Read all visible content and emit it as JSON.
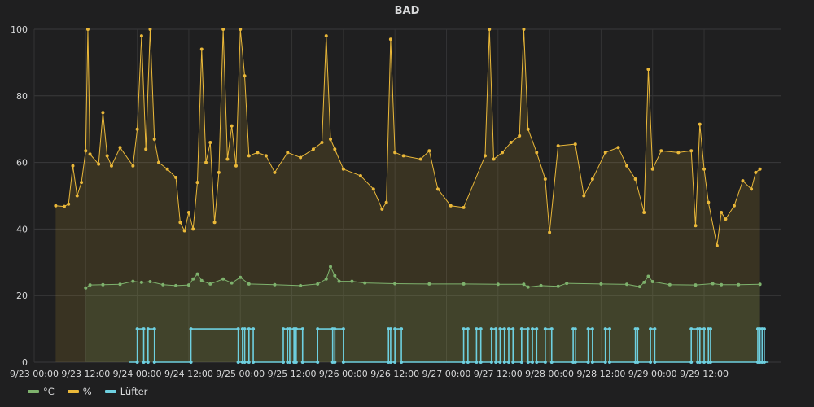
{
  "chart_data": {
    "type": "line",
    "title": "BAD",
    "xlabel": "",
    "ylabel": "",
    "ylim": [
      0,
      100
    ],
    "y_ticks": [
      0,
      20,
      40,
      60,
      80,
      100
    ],
    "xlim": [
      "2017-09-23T00:00",
      "2017-09-30T06:00"
    ],
    "x_ticks": [
      "9/23 00:00",
      "9/23 12:00",
      "9/24 00:00",
      "9/24 12:00",
      "9/25 00:00",
      "9/25 12:00",
      "9/26 00:00",
      "9/26 12:00",
      "9/27 00:00",
      "9/27 12:00",
      "9/28 00:00",
      "9/28 12:00",
      "9/29 00:00",
      "9/29 12:00"
    ],
    "grid": true,
    "legend": "bottom-left",
    "series": [
      {
        "name": "°C",
        "color": "#7eb26d",
        "fill": true,
        "points": [
          [
            "9/23 12:00",
            22.3
          ],
          [
            "9/23 13:00",
            23.2
          ],
          [
            "9/23 16:00",
            23.3
          ],
          [
            "9/23 20:00",
            23.4
          ],
          [
            "9/23 23:00",
            24.3
          ],
          [
            "9/24 01:00",
            24.0
          ],
          [
            "9/24 03:00",
            24.2
          ],
          [
            "9/24 06:00",
            23.3
          ],
          [
            "9/24 09:00",
            23.0
          ],
          [
            "9/24 12:00",
            23.2
          ],
          [
            "9/24 13:00",
            25.0
          ],
          [
            "9/24 14:00",
            26.5
          ],
          [
            "9/24 15:00",
            24.5
          ],
          [
            "9/24 17:00",
            23.5
          ],
          [
            "9/24 20:00",
            25.0
          ],
          [
            "9/24 22:00",
            23.8
          ],
          [
            "9/25 00:00",
            25.5
          ],
          [
            "9/25 02:00",
            23.5
          ],
          [
            "9/25 08:00",
            23.3
          ],
          [
            "9/25 14:00",
            23.0
          ],
          [
            "9/25 18:00",
            23.5
          ],
          [
            "9/25 20:00",
            25.0
          ],
          [
            "9/25 21:00",
            28.7
          ],
          [
            "9/25 22:00",
            26.0
          ],
          [
            "9/25 23:00",
            24.3
          ],
          [
            "9/26 02:00",
            24.3
          ],
          [
            "9/26 05:00",
            23.8
          ],
          [
            "9/26 12:00",
            23.6
          ],
          [
            "9/26 20:00",
            23.5
          ],
          [
            "9/27 04:00",
            23.5
          ],
          [
            "9/27 12:00",
            23.4
          ],
          [
            "9/27 18:00",
            23.4
          ],
          [
            "9/27 19:00",
            22.6
          ],
          [
            "9/27 22:00",
            23.0
          ],
          [
            "9/28 02:00",
            22.8
          ],
          [
            "9/28 04:00",
            23.7
          ],
          [
            "9/28 12:00",
            23.5
          ],
          [
            "9/28 18:00",
            23.4
          ],
          [
            "9/28 21:00",
            22.7
          ],
          [
            "9/28 22:00",
            24.0
          ],
          [
            "9/28 23:00",
            25.8
          ],
          [
            "9/29 00:00",
            24.2
          ],
          [
            "9/29 04:00",
            23.3
          ],
          [
            "9/29 10:00",
            23.2
          ],
          [
            "9/29 14:00",
            23.6
          ],
          [
            "9/29 16:00",
            23.3
          ],
          [
            "9/29 20:00",
            23.3
          ],
          [
            "9/30 01:00",
            23.4
          ]
        ]
      },
      {
        "name": "%",
        "color": "#eab839",
        "fill": true,
        "points": [
          [
            "9/23 05:00",
            47.0
          ],
          [
            "9/23 07:00",
            46.8
          ],
          [
            "9/23 08:00",
            47.5
          ],
          [
            "9/23 09:00",
            59.0
          ],
          [
            "9/23 10:00",
            50.0
          ],
          [
            "9/23 11:00",
            54.0
          ],
          [
            "9/23 12:00",
            63.5
          ],
          [
            "9/23 12:30",
            100
          ],
          [
            "9/23 13:00",
            62.5
          ],
          [
            "9/23 15:00",
            59.5
          ],
          [
            "9/23 16:00",
            75.0
          ],
          [
            "9/23 17:00",
            62.0
          ],
          [
            "9/23 18:00",
            59.0
          ],
          [
            "9/23 20:00",
            64.5
          ],
          [
            "9/23 23:00",
            59.0
          ],
          [
            "9/24 00:00",
            70.0
          ],
          [
            "9/24 01:00",
            98.0
          ],
          [
            "9/24 02:00",
            64.0
          ],
          [
            "9/24 03:00",
            100
          ],
          [
            "9/24 04:00",
            67.0
          ],
          [
            "9/24 05:00",
            60.0
          ],
          [
            "9/24 07:00",
            58.0
          ],
          [
            "9/24 09:00",
            55.5
          ],
          [
            "9/24 10:00",
            42.0
          ],
          [
            "9/24 11:00",
            39.5
          ],
          [
            "9/24 12:00",
            45.0
          ],
          [
            "9/24 13:00",
            40.0
          ],
          [
            "9/24 14:00",
            54.0
          ],
          [
            "9/24 15:00",
            94.0
          ],
          [
            "9/24 16:00",
            60.0
          ],
          [
            "9/24 17:00",
            66.0
          ],
          [
            "9/24 18:00",
            42.0
          ],
          [
            "9/24 19:00",
            57.0
          ],
          [
            "9/24 20:00",
            100
          ],
          [
            "9/24 21:00",
            61.0
          ],
          [
            "9/24 22:00",
            71.0
          ],
          [
            "9/24 23:00",
            59.0
          ],
          [
            "9/25 00:00",
            100
          ],
          [
            "9/25 01:00",
            86.0
          ],
          [
            "9/25 02:00",
            62.0
          ],
          [
            "9/25 04:00",
            63.0
          ],
          [
            "9/25 06:00",
            62.0
          ],
          [
            "9/25 08:00",
            57.0
          ],
          [
            "9/25 11:00",
            63.0
          ],
          [
            "9/25 14:00",
            61.5
          ],
          [
            "9/25 17:00",
            64.0
          ],
          [
            "9/25 19:00",
            66.0
          ],
          [
            "9/25 20:00",
            98.0
          ],
          [
            "9/25 21:00",
            67.0
          ],
          [
            "9/25 22:00",
            64.0
          ],
          [
            "9/26 00:00",
            58.0
          ],
          [
            "9/26 04:00",
            56.0
          ],
          [
            "9/26 07:00",
            52.0
          ],
          [
            "9/26 09:00",
            46.0
          ],
          [
            "9/26 10:00",
            48.0
          ],
          [
            "9/26 11:00",
            97.0
          ],
          [
            "9/26 12:00",
            63.0
          ],
          [
            "9/26 14:00",
            62.0
          ],
          [
            "9/26 18:00",
            61.0
          ],
          [
            "9/26 20:00",
            63.5
          ],
          [
            "9/26 22:00",
            52.0
          ],
          [
            "9/27 01:00",
            47.0
          ],
          [
            "9/27 04:00",
            46.5
          ],
          [
            "9/27 09:00",
            62.0
          ],
          [
            "9/27 10:00",
            100
          ],
          [
            "9/27 11:00",
            61.0
          ],
          [
            "9/27 13:00",
            63.0
          ],
          [
            "9/27 15:00",
            66.0
          ],
          [
            "9/27 17:00",
            68.0
          ],
          [
            "9/27 18:00",
            100
          ],
          [
            "9/27 19:00",
            70.0
          ],
          [
            "9/27 21:00",
            63.0
          ],
          [
            "9/27 23:00",
            55.0
          ],
          [
            "9/28 00:00",
            39.0
          ],
          [
            "9/28 02:00",
            65.0
          ],
          [
            "9/28 06:00",
            65.5
          ],
          [
            "9/28 08:00",
            50.0
          ],
          [
            "9/28 10:00",
            55.0
          ],
          [
            "9/28 13:00",
            63.0
          ],
          [
            "9/28 16:00",
            64.5
          ],
          [
            "9/28 18:00",
            59.0
          ],
          [
            "9/28 20:00",
            55.0
          ],
          [
            "9/28 22:00",
            45.0
          ],
          [
            "9/28 23:00",
            88.0
          ],
          [
            "9/29 00:00",
            58.0
          ],
          [
            "9/29 02:00",
            63.5
          ],
          [
            "9/29 06:00",
            63.0
          ],
          [
            "9/29 09:00",
            63.5
          ],
          [
            "9/29 10:00",
            41.0
          ],
          [
            "9/29 11:00",
            71.5
          ],
          [
            "9/29 12:00",
            58.0
          ],
          [
            "9/29 13:00",
            48.0
          ],
          [
            "9/29 15:00",
            35.0
          ],
          [
            "9/29 16:00",
            45.0
          ],
          [
            "9/29 17:00",
            43.0
          ],
          [
            "9/29 19:00",
            47.0
          ],
          [
            "9/29 21:00",
            54.5
          ],
          [
            "9/29 23:00",
            52.0
          ],
          [
            "9/30 00:00",
            57.0
          ],
          [
            "9/30 01:00",
            58.0
          ]
        ]
      },
      {
        "name": "Lüfter",
        "color": "#6ed0e0",
        "fill": false,
        "step": true,
        "on_value": 10,
        "off_value": 0,
        "on_intervals": [
          [
            "9/24 00:00",
            "9/24 01:30"
          ],
          [
            "9/24 02:30",
            "9/24 04:00"
          ],
          [
            "9/24 12:30",
            "9/24 23:30"
          ],
          [
            "9/25 00:30",
            "9/25 01:00"
          ],
          [
            "9/25 02:00",
            "9/25 03:00"
          ],
          [
            "9/25 10:00",
            "9/25 11:00"
          ],
          [
            "9/25 11:30",
            "9/25 12:30"
          ],
          [
            "9/25 13:00",
            "9/25 14:30"
          ],
          [
            "9/25 18:00",
            "9/25 21:30"
          ],
          [
            "9/25 22:00",
            "9/26 00:00"
          ],
          [
            "9/26 10:30",
            "9/26 11:00"
          ],
          [
            "9/26 12:00",
            "9/26 13:30"
          ],
          [
            "9/27 04:00",
            "9/27 05:00"
          ],
          [
            "9/27 07:00",
            "9/27 08:00"
          ],
          [
            "9/27 10:30",
            "9/27 11:30"
          ],
          [
            "9/27 12:30",
            "9/27 13:30"
          ],
          [
            "9/27 14:30",
            "9/27 15:30"
          ],
          [
            "9/27 17:30",
            "9/27 19:00"
          ],
          [
            "9/27 20:00",
            "9/27 21:00"
          ],
          [
            "9/27 23:00",
            "9/28 00:30"
          ],
          [
            "9/28 05:30",
            "9/28 06:00"
          ],
          [
            "9/28 09:00",
            "9/28 10:00"
          ],
          [
            "9/28 13:00",
            "9/28 14:00"
          ],
          [
            "9/28 20:00",
            "9/28 20:30"
          ],
          [
            "9/28 23:30",
            "9/29 00:30"
          ],
          [
            "9/29 09:00",
            "9/29 10:30"
          ],
          [
            "9/29 11:00",
            "9/29 12:00"
          ],
          [
            "9/29 13:00",
            "9/29 13:30"
          ],
          [
            "9/30 00:30",
            "9/30 01:00"
          ],
          [
            "9/30 01:30",
            "9/30 02:00"
          ]
        ]
      }
    ]
  }
}
